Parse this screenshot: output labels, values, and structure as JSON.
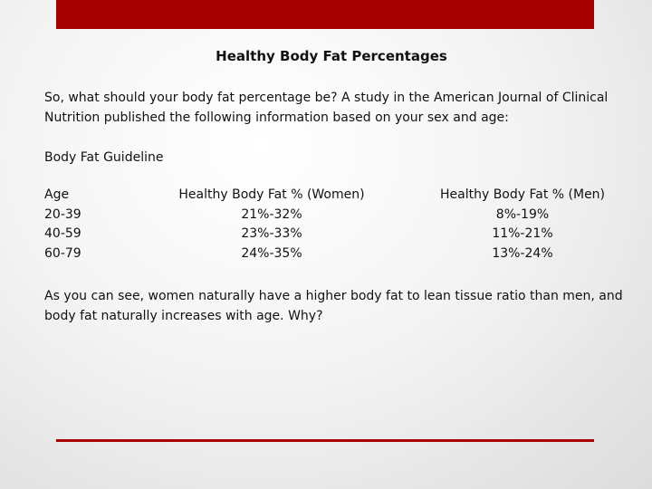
{
  "title": "Healthy Body Fat Percentages",
  "intro": "So, what should your body fat percentage be? A study in the American Journal of Clinical Nutrition published the following information based on your sex and age:",
  "guideline_label": "Body Fat Guideline",
  "table": {
    "headers": [
      "Age",
      "Healthy Body Fat % (Women)",
      "Healthy Body Fat % (Men)"
    ],
    "rows": [
      [
        "20-39",
        "21%-32%",
        "8%-19%"
      ],
      [
        "40-59",
        "23%-33%",
        "11%-21%"
      ],
      [
        "60-79",
        "24%-35%",
        "13%-24%"
      ]
    ]
  },
  "closing": "As you can see, women naturally have a higher body fat to lean tissue ratio than men, and body fat naturally increases with age.  Why?",
  "colors": {
    "accent": "#a80000",
    "background": "#f4f4f4",
    "text": "#111111"
  }
}
